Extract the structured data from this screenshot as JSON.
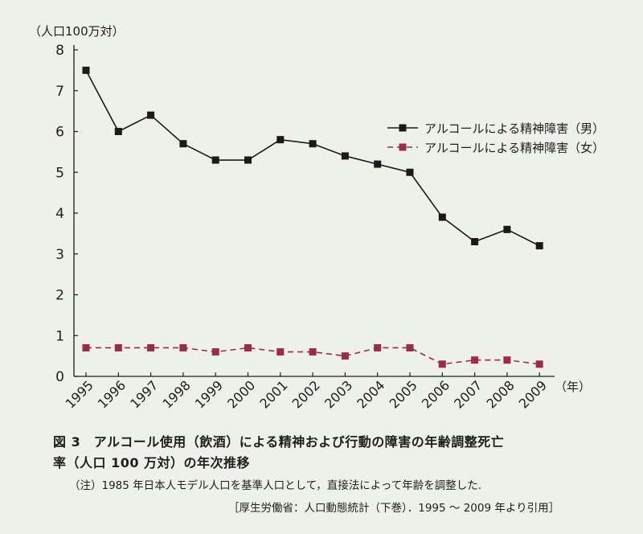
{
  "chart_data": {
    "type": "line",
    "ylabel": "（人口100万対）",
    "xunit": "（年）",
    "ylim": [
      0,
      8
    ],
    "yticks": [
      "0",
      "1",
      "2",
      "3",
      "4",
      "5",
      "6",
      "7",
      "8"
    ],
    "categories": [
      "1995",
      "1996",
      "1997",
      "1998",
      "1999",
      "2000",
      "2001",
      "2002",
      "2003",
      "2004",
      "2005",
      "2006",
      "2007",
      "2008",
      "2009"
    ],
    "series": [
      {
        "name": "アルコールによる精神障害（男）",
        "color": "#1a1a1a",
        "line_style": "solid",
        "marker": "square",
        "values": [
          7.5,
          6.0,
          6.4,
          5.7,
          5.3,
          5.3,
          5.8,
          5.7,
          5.4,
          5.2,
          5.0,
          3.9,
          3.3,
          3.6,
          3.2
        ]
      },
      {
        "name": "アルコールによる精神障害（女）",
        "color": "#9c2a4a",
        "line_style": "dashed",
        "marker": "square",
        "values": [
          0.7,
          0.7,
          0.7,
          0.7,
          0.6,
          0.7,
          0.6,
          0.6,
          0.5,
          0.7,
          0.7,
          0.3,
          0.4,
          0.4,
          0.3
        ]
      }
    ],
    "legend_position": "upper-right",
    "grid": false
  },
  "caption": {
    "title_line1": "図 3　アルコール使用（飲酒）による精神および行動の障害の年齢調整死亡",
    "title_line2": "率（人口 100 万対）の年次推移",
    "note": "（注）1985 年日本人モデル人口を基準人口として，直接法によって年齢を調整した.",
    "source": "［厚生労働省：人口動態統計（下巻）．1995 ～ 2009 年より引用］"
  }
}
